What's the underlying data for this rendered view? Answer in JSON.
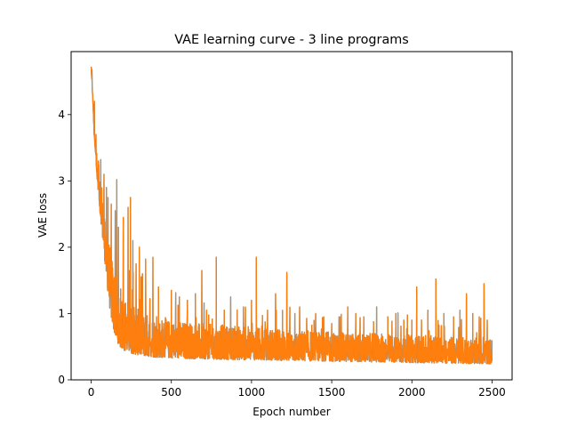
{
  "chart_data": {
    "type": "line",
    "title": "VAE learning curve - 3 line programs",
    "xlabel": "Epoch number",
    "ylabel": "VAE loss",
    "xlim": [
      -125,
      2625
    ],
    "ylim": [
      0,
      4.95
    ],
    "x_ticks": [
      0,
      500,
      1000,
      1500,
      2000,
      2500
    ],
    "y_ticks": [
      0,
      1,
      2,
      3,
      4
    ],
    "grid": false,
    "legend": "none",
    "series": [
      {
        "color": "#ff7f0e",
        "underlay_color": "#1f77b4",
        "x_start": 0,
        "x_end": 2500,
        "baseline": [
          [
            0,
            4.7
          ],
          [
            10,
            4.3
          ],
          [
            20,
            3.6
          ],
          [
            40,
            2.9
          ],
          [
            60,
            2.4
          ],
          [
            80,
            1.9
          ],
          [
            100,
            1.4
          ],
          [
            120,
            1.0
          ],
          [
            140,
            0.75
          ],
          [
            160,
            0.58
          ],
          [
            180,
            0.5
          ],
          [
            200,
            0.45
          ],
          [
            250,
            0.4
          ],
          [
            300,
            0.37
          ],
          [
            400,
            0.34
          ],
          [
            600,
            0.32
          ],
          [
            800,
            0.31
          ],
          [
            1000,
            0.3
          ],
          [
            1500,
            0.28
          ],
          [
            2000,
            0.26
          ],
          [
            2500,
            0.24
          ]
        ],
        "band_top": [
          [
            0,
            4.7
          ],
          [
            20,
            3.7
          ],
          [
            50,
            3.0
          ],
          [
            80,
            2.6
          ],
          [
            100,
            2.3
          ],
          [
            120,
            2.0
          ],
          [
            150,
            1.6
          ],
          [
            200,
            1.3
          ],
          [
            250,
            1.15
          ],
          [
            300,
            1.05
          ],
          [
            400,
            0.95
          ],
          [
            500,
            0.9
          ],
          [
            700,
            0.85
          ],
          [
            1000,
            0.8
          ],
          [
            1500,
            0.72
          ],
          [
            2000,
            0.68
          ],
          [
            2500,
            0.62
          ]
        ],
        "spikes": [
          [
            0,
            4.72
          ],
          [
            5,
            4.68
          ],
          [
            20,
            4.2
          ],
          [
            30,
            3.7
          ],
          [
            45,
            3.3
          ],
          [
            60,
            3.32
          ],
          [
            80,
            3.1
          ],
          [
            95,
            2.9
          ],
          [
            105,
            2.75
          ],
          [
            125,
            2.65
          ],
          [
            150,
            2.55
          ],
          [
            160,
            3.02
          ],
          [
            170,
            2.3
          ],
          [
            200,
            2.45
          ],
          [
            230,
            2.6
          ],
          [
            245,
            2.75
          ],
          [
            260,
            2.1
          ],
          [
            280,
            1.75
          ],
          [
            300,
            2.0
          ],
          [
            320,
            1.6
          ],
          [
            340,
            1.82
          ],
          [
            385,
            1.85
          ],
          [
            420,
            1.4
          ],
          [
            500,
            1.35
          ],
          [
            550,
            1.25
          ],
          [
            600,
            1.2
          ],
          [
            650,
            1.3
          ],
          [
            690,
            1.65
          ],
          [
            720,
            1.05
          ],
          [
            780,
            1.85
          ],
          [
            830,
            1.05
          ],
          [
            870,
            1.25
          ],
          [
            950,
            1.1
          ],
          [
            1000,
            1.2
          ],
          [
            1030,
            1.85
          ],
          [
            1100,
            1.05
          ],
          [
            1150,
            1.3
          ],
          [
            1220,
            1.62
          ],
          [
            1270,
            1.0
          ],
          [
            1300,
            1.1
          ],
          [
            1400,
            1.0
          ],
          [
            1450,
            0.95
          ],
          [
            1500,
            0.85
          ],
          [
            1550,
            0.95
          ],
          [
            1600,
            1.1
          ],
          [
            1650,
            1.0
          ],
          [
            1700,
            0.95
          ],
          [
            1780,
            1.1
          ],
          [
            1850,
            0.95
          ],
          [
            1900,
            1.0
          ],
          [
            1950,
            0.9
          ],
          [
            2000,
            0.9
          ],
          [
            2030,
            1.4
          ],
          [
            2100,
            1.05
          ],
          [
            2150,
            1.52
          ],
          [
            2200,
            1.0
          ],
          [
            2260,
            0.95
          ],
          [
            2300,
            1.05
          ],
          [
            2340,
            1.3
          ],
          [
            2380,
            1.0
          ],
          [
            2420,
            0.95
          ],
          [
            2450,
            1.45
          ],
          [
            2470,
            0.9
          ],
          [
            2490,
            0.6
          ]
        ]
      }
    ]
  }
}
